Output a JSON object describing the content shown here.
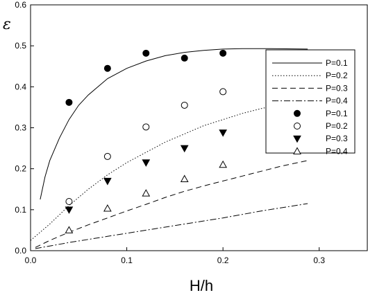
{
  "chart_data": {
    "type": "scatter",
    "xlabel": "H/h",
    "ylabel": "ε",
    "xlim": [
      0.0,
      0.35
    ],
    "ylim": [
      0.0,
      0.6
    ],
    "xticks": [
      0.0,
      0.1,
      0.2,
      0.3
    ],
    "xtick_labels": [
      "0.0",
      "0.1",
      "0.2",
      "0.3"
    ],
    "yticks": [
      0.0,
      0.1,
      0.2,
      0.3,
      0.4,
      0.5,
      0.6
    ],
    "ytick_labels": [
      "0.0",
      "0.1",
      "0.2",
      "0.3",
      "0.4",
      "0.5",
      "0.6"
    ],
    "grid": false,
    "legend_position": "right",
    "lines": [
      {
        "name": "P=0.1",
        "style": "solid",
        "x": [
          0.01,
          0.015,
          0.02,
          0.03,
          0.04,
          0.05,
          0.06,
          0.08,
          0.1,
          0.12,
          0.14,
          0.16,
          0.18,
          0.2,
          0.22,
          0.25,
          0.288
        ],
        "y": [
          0.125,
          0.18,
          0.22,
          0.275,
          0.32,
          0.355,
          0.38,
          0.42,
          0.445,
          0.463,
          0.476,
          0.484,
          0.489,
          0.492,
          0.493,
          0.493,
          0.492
        ]
      },
      {
        "name": "P=0.2",
        "style": "dotted",
        "x": [
          0.0,
          0.02,
          0.04,
          0.06,
          0.08,
          0.1,
          0.12,
          0.14,
          0.16,
          0.18,
          0.2,
          0.22,
          0.24,
          0.26,
          0.28,
          0.288
        ],
        "y": [
          0.025,
          0.065,
          0.11,
          0.15,
          0.185,
          0.215,
          0.24,
          0.265,
          0.285,
          0.305,
          0.32,
          0.335,
          0.347,
          0.357,
          0.365,
          0.368
        ]
      },
      {
        "name": "P=0.3",
        "style": "dashed",
        "x": [
          0.005,
          0.02,
          0.04,
          0.06,
          0.08,
          0.1,
          0.12,
          0.14,
          0.16,
          0.18,
          0.2,
          0.22,
          0.24,
          0.26,
          0.288
        ],
        "y": [
          0.008,
          0.025,
          0.045,
          0.063,
          0.08,
          0.097,
          0.113,
          0.13,
          0.145,
          0.158,
          0.17,
          0.182,
          0.194,
          0.206,
          0.22
        ]
      },
      {
        "name": "P=0.4",
        "style": "dashdot",
        "x": [
          0.005,
          0.04,
          0.08,
          0.12,
          0.16,
          0.2,
          0.24,
          0.288
        ],
        "y": [
          0.005,
          0.02,
          0.035,
          0.05,
          0.065,
          0.08,
          0.097,
          0.115
        ]
      }
    ],
    "points": [
      {
        "name": "P=0.1",
        "marker": "filled-circle",
        "x": [
          0.04,
          0.08,
          0.12,
          0.16,
          0.2
        ],
        "y": [
          0.362,
          0.445,
          0.482,
          0.47,
          0.482
        ]
      },
      {
        "name": "P=0.2",
        "marker": "open-circle",
        "x": [
          0.04,
          0.08,
          0.12,
          0.16,
          0.2
        ],
        "y": [
          0.12,
          0.23,
          0.302,
          0.355,
          0.388
        ]
      },
      {
        "name": "P=0.3",
        "marker": "filled-triangle-down",
        "x": [
          0.04,
          0.08,
          0.12,
          0.16,
          0.2
        ],
        "y": [
          0.1,
          0.17,
          0.215,
          0.25,
          0.288
        ]
      },
      {
        "name": "P=0.4",
        "marker": "open-triangle-up",
        "x": [
          0.04,
          0.08,
          0.12,
          0.16,
          0.2
        ],
        "y": [
          0.05,
          0.103,
          0.14,
          0.175,
          0.21
        ]
      }
    ]
  }
}
